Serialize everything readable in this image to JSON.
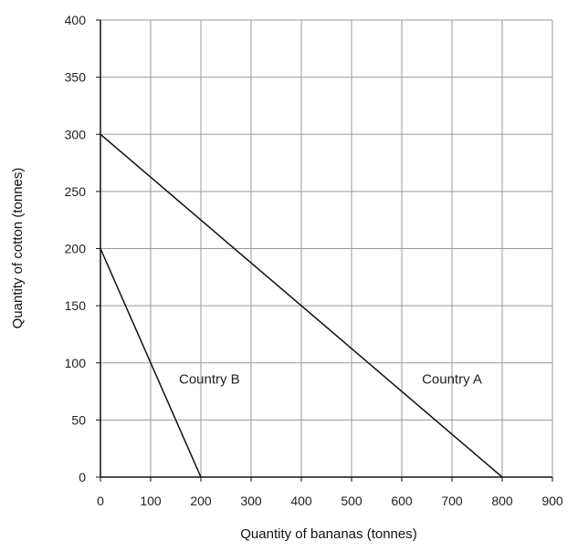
{
  "chart_data": {
    "type": "line",
    "title": "",
    "xlabel": "Quantity of bananas (tonnes)",
    "ylabel": "Quantity of cotton (tonnes)",
    "xlim": [
      0,
      900
    ],
    "ylim": [
      0,
      400
    ],
    "xticks": [
      0,
      100,
      200,
      300,
      400,
      500,
      600,
      700,
      800,
      900
    ],
    "yticks": [
      0,
      50,
      100,
      150,
      200,
      250,
      300,
      350,
      400
    ],
    "grid": true,
    "legend": "none",
    "series": [
      {
        "name": "Country A",
        "x": [
          0,
          800
        ],
        "y": [
          300,
          0
        ]
      },
      {
        "name": "Country B",
        "x": [
          0,
          200
        ],
        "y": [
          200,
          0
        ]
      }
    ],
    "annotations": [
      {
        "text": "Country A",
        "x": 700,
        "y": 82
      },
      {
        "text": "Country B",
        "x": 217,
        "y": 82
      }
    ],
    "colors": {
      "line": "#111111",
      "grid": "#999999",
      "axis": "#111111"
    }
  }
}
